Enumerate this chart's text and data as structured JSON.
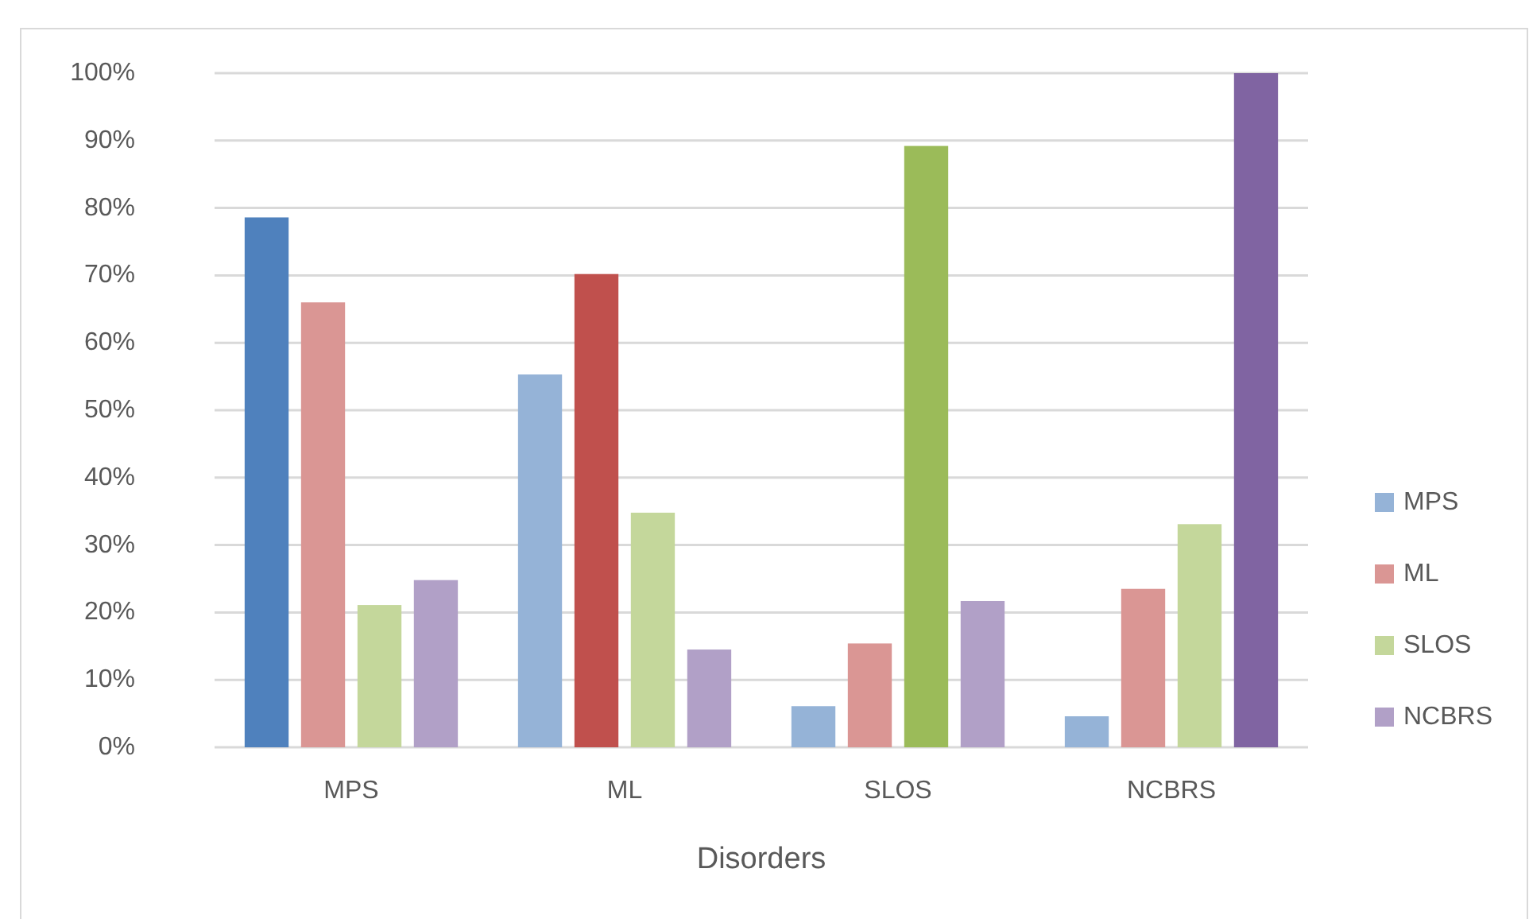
{
  "chart_data": {
    "type": "bar",
    "xlabel": "Disorders",
    "categories": [
      "MPS",
      "ML",
      "SLOS",
      "NCBRS"
    ],
    "series": [
      {
        "name": "MPS",
        "color": "#95b3d7",
        "colors": [
          "#4f81bd",
          "#95b3d7",
          "#95b3d7",
          "#95b3d7"
        ],
        "values": [
          78.6,
          55.3,
          6.1,
          4.6
        ]
      },
      {
        "name": "ML",
        "color": "#da9694",
        "colors": [
          "#da9694",
          "#c0504d",
          "#da9694",
          "#da9694"
        ],
        "values": [
          66.0,
          70.2,
          15.4,
          23.5
        ]
      },
      {
        "name": "SLOS",
        "color": "#c4d79b",
        "colors": [
          "#c4d79b",
          "#c4d79b",
          "#9bbb59",
          "#c4d79b"
        ],
        "values": [
          21.1,
          34.8,
          89.2,
          33.1
        ]
      },
      {
        "name": "NCBRS",
        "color": "#b1a0c7",
        "colors": [
          "#b1a0c7",
          "#b1a0c7",
          "#b1a0c7",
          "#8064a2"
        ],
        "values": [
          24.8,
          14.5,
          21.7,
          100
        ]
      }
    ],
    "ylim": [
      0,
      100
    ],
    "yticks": [
      {
        "value": 0,
        "label": "0%"
      },
      {
        "value": 10,
        "label": "10%"
      },
      {
        "value": 20,
        "label": "20%"
      },
      {
        "value": 30,
        "label": "30%"
      },
      {
        "value": 40,
        "label": "40%"
      },
      {
        "value": 50,
        "label": "50%"
      },
      {
        "value": 60,
        "label": "60%"
      },
      {
        "value": 70,
        "label": "70%"
      },
      {
        "value": 80,
        "label": "80%"
      },
      {
        "value": 90,
        "label": "90%"
      },
      {
        "value": 100,
        "label": "100%"
      }
    ],
    "grid": "y",
    "legend": "right"
  }
}
